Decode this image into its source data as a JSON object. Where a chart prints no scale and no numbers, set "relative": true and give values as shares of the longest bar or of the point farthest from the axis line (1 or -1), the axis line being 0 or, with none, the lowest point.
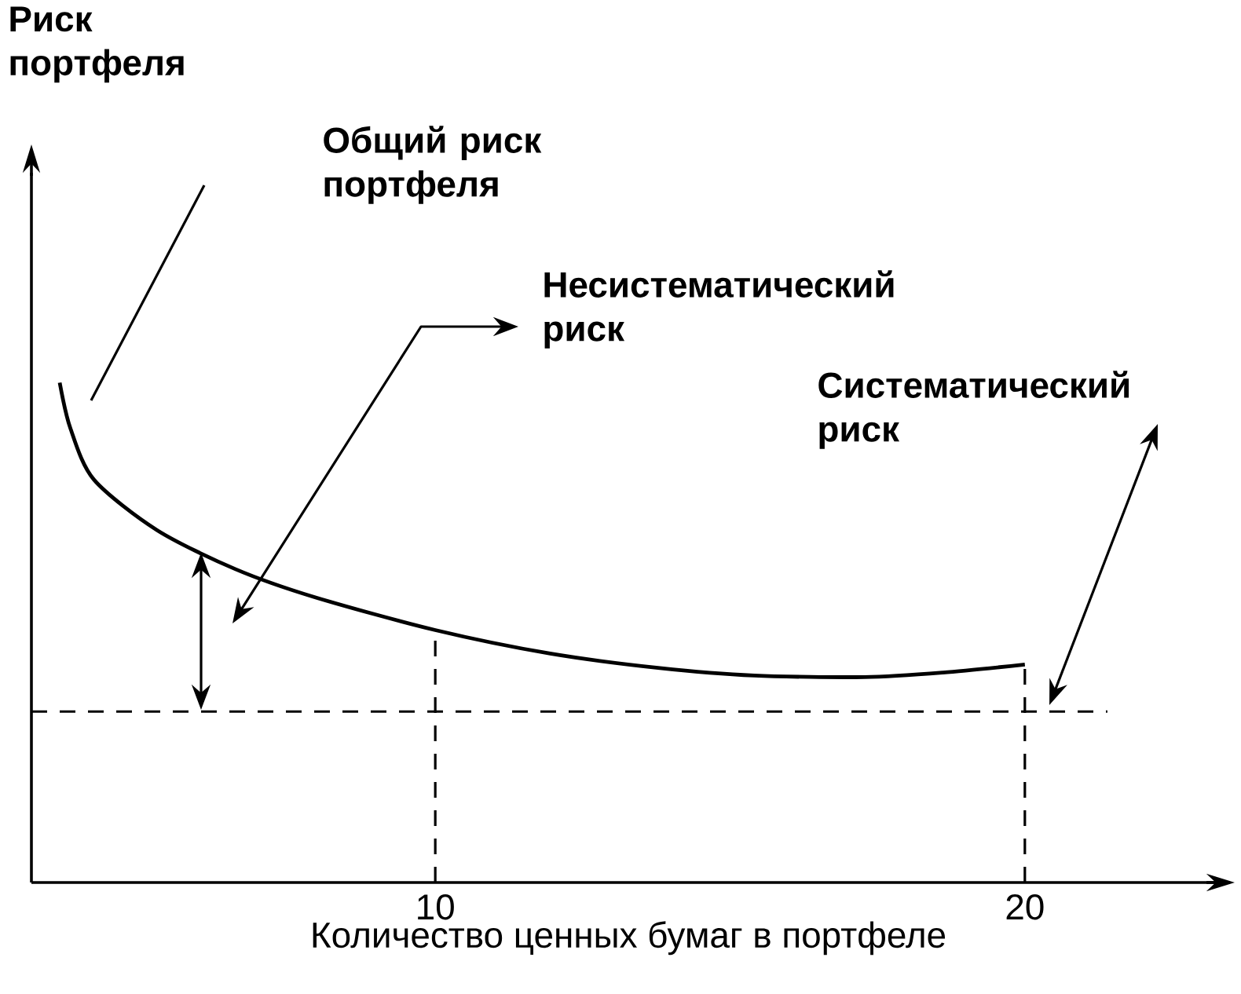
{
  "chart_data": {
    "type": "line",
    "xlabel": "Количество ценных бумаг в портфеле",
    "relative": true,
    "color": "#000000",
    "x": [
      3.63,
      3.81,
      4.21,
      5.28,
      6.61,
      7.95,
      10,
      11.95,
      13.81,
      15.41,
      17.28,
      18.61,
      20
    ],
    "values": [
      1.0,
      0.909,
      0.806,
      0.705,
      0.627,
      0.571,
      0.505,
      0.458,
      0.429,
      0.414,
      0.411,
      0.42,
      0.436
    ],
    "xlim": [
      3.15,
      23.4
    ],
    "xticks": [
      10,
      20
    ],
    "ref_lines": [
      {
        "axis": "y",
        "value": 0.342,
        "line_style": "dashed"
      },
      {
        "axis": "x",
        "value": 10,
        "line_style": "dashed"
      },
      {
        "axis": "x",
        "value": 20,
        "line_style": "dashed"
      }
    ],
    "annotations": [
      "Риск портфеля",
      "Общий риск портфеля",
      "Несистематический риск",
      "Систематический риск"
    ]
  }
}
